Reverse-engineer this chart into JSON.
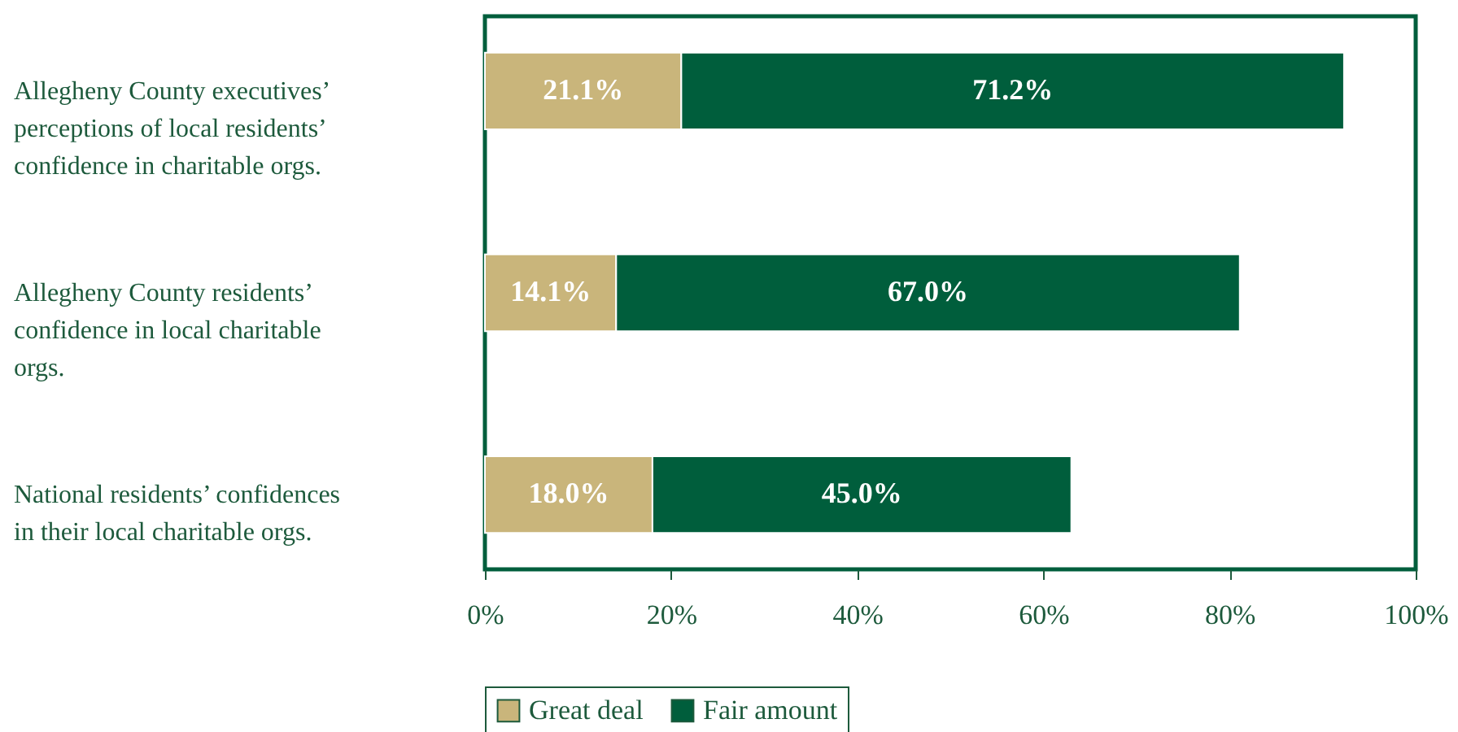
{
  "chart_data": {
    "type": "bar",
    "orientation": "horizontal",
    "stacked": true,
    "categories": [
      "Allegheny County executives’ perceptions of local residents’ confidence in charitable orgs.",
      "Allegheny County residents’ confidence in local charitable orgs.",
      "National residents’ confidences in their local charitable orgs."
    ],
    "series": [
      {
        "name": "Great deal",
        "color": "#c9b57b",
        "values": [
          21.1,
          14.1,
          18.0
        ],
        "value_labels": [
          "21.1%",
          "14.1%",
          "18.0%"
        ]
      },
      {
        "name": "Fair amount",
        "color": "#005e3c",
        "values": [
          71.2,
          67.0,
          45.0
        ],
        "value_labels": [
          "71.2%",
          "67.0%",
          "45.0%"
        ]
      }
    ],
    "xlim": [
      0,
      100
    ],
    "xticks": [
      {
        "value": 0,
        "label": "0%"
      },
      {
        "value": 20,
        "label": "20%"
      },
      {
        "value": 40,
        "label": "40%"
      },
      {
        "value": 60,
        "label": "60%"
      },
      {
        "value": 80,
        "label": "80%"
      },
      {
        "value": 100,
        "label": "100%"
      }
    ],
    "grid": false,
    "legend": "bottom"
  }
}
